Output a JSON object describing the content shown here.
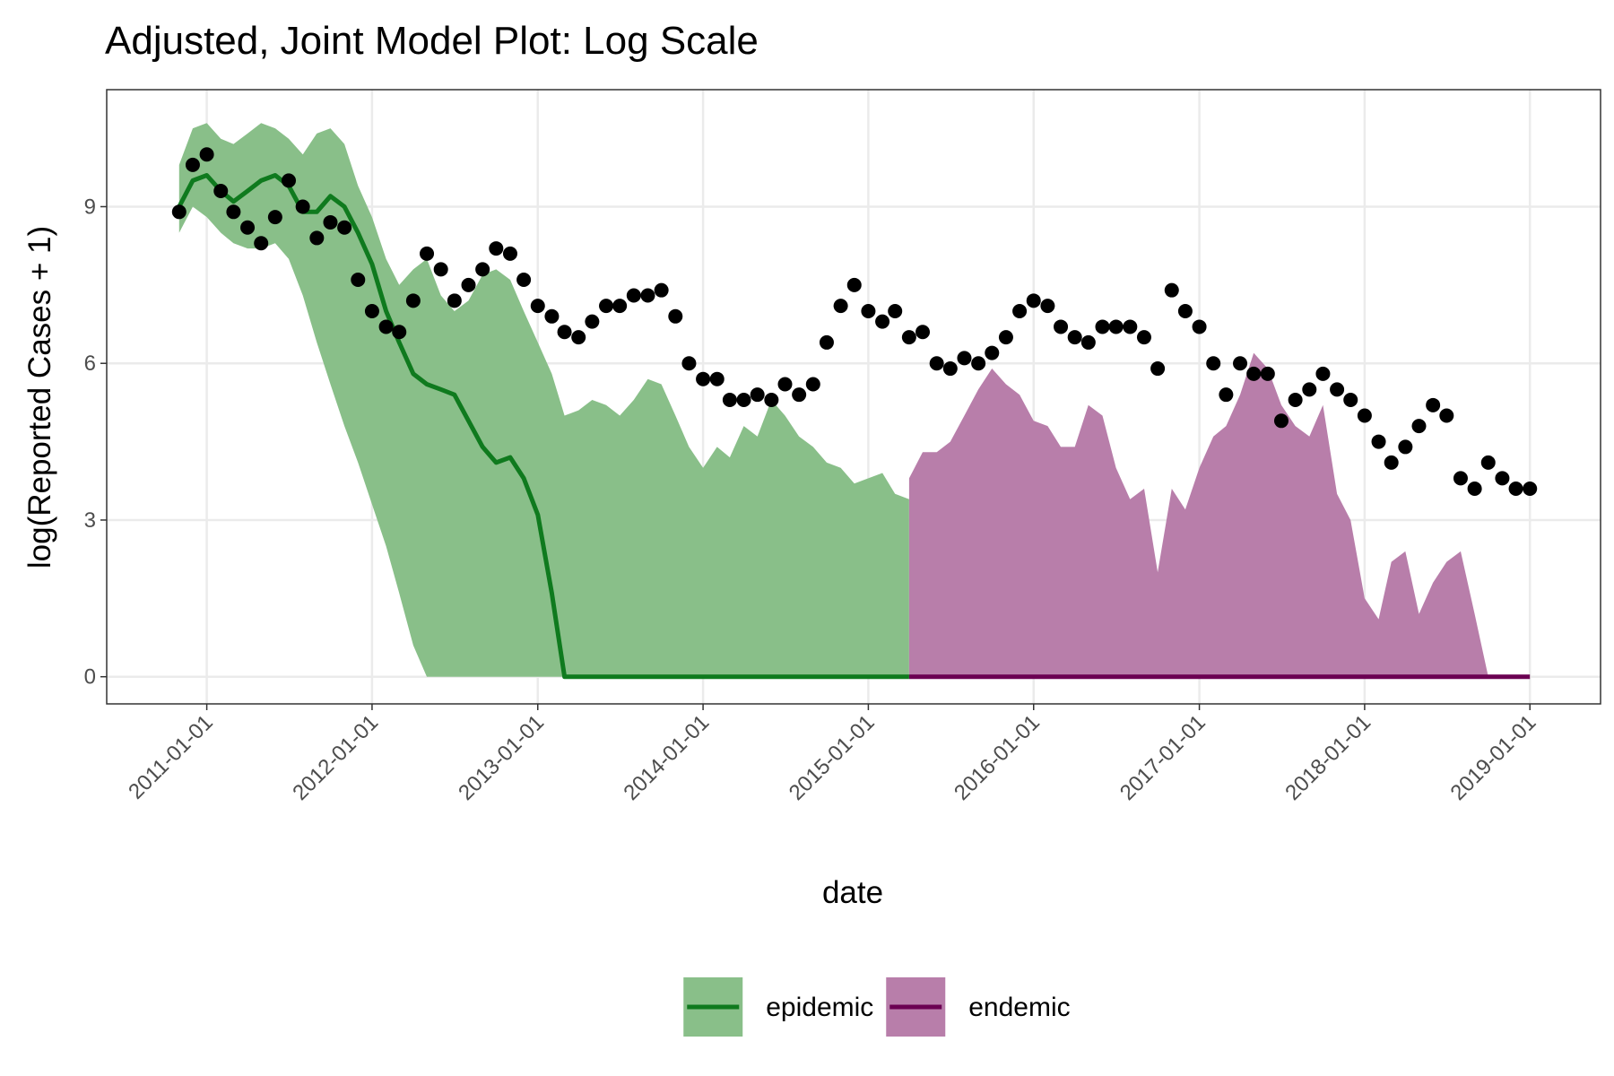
{
  "chart_data": {
    "type": "line",
    "title": "Adjusted, Joint Model Plot: Log Scale",
    "x_label": "date",
    "y_label": "log(Reported Cases + 1)",
    "xlim": [
      "2010-05-25",
      "2019-06-06"
    ],
    "xticks": [
      "2011-01-01",
      "2012-01-01",
      "2013-01-01",
      "2014-01-01",
      "2015-01-01",
      "2016-01-01",
      "2017-01-01",
      "2018-01-01",
      "2019-01-01"
    ],
    "ylim": [
      -0.52,
      11.24
    ],
    "yticks": [
      0,
      3,
      6,
      9
    ],
    "grid": true,
    "legend_position": "bottom",
    "x": [
      "2010-11-01",
      "2010-12-01",
      "2011-01-01",
      "2011-02-01",
      "2011-03-01",
      "2011-04-01",
      "2011-05-01",
      "2011-06-01",
      "2011-07-01",
      "2011-08-01",
      "2011-09-01",
      "2011-10-01",
      "2011-11-01",
      "2011-12-01",
      "2012-01-01",
      "2012-02-01",
      "2012-03-01",
      "2012-04-01",
      "2012-05-01",
      "2012-06-01",
      "2012-07-01",
      "2012-08-01",
      "2012-09-01",
      "2012-10-01",
      "2012-11-01",
      "2012-12-01",
      "2013-01-01",
      "2013-02-01",
      "2013-03-01",
      "2013-04-01",
      "2013-05-01",
      "2013-06-01",
      "2013-07-01",
      "2013-08-01",
      "2013-09-01",
      "2013-10-01",
      "2013-11-01",
      "2013-12-01",
      "2014-01-01",
      "2014-02-01",
      "2014-03-01",
      "2014-04-01",
      "2014-05-01",
      "2014-06-01",
      "2014-07-01",
      "2014-08-01",
      "2014-09-01",
      "2014-10-01",
      "2014-11-01",
      "2014-12-01",
      "2015-01-01",
      "2015-02-01",
      "2015-03-01",
      "2015-04-01",
      "2015-05-01",
      "2015-06-01",
      "2015-07-01",
      "2015-08-01",
      "2015-09-01",
      "2015-10-01",
      "2015-11-01",
      "2015-12-01",
      "2016-01-01",
      "2016-02-01",
      "2016-03-01",
      "2016-04-01",
      "2016-05-01",
      "2016-06-01",
      "2016-07-01",
      "2016-08-01",
      "2016-09-01",
      "2016-10-01",
      "2016-11-01",
      "2016-12-01",
      "2017-01-01",
      "2017-02-01",
      "2017-03-01",
      "2017-04-01",
      "2017-05-01",
      "2017-06-01",
      "2017-07-01",
      "2017-08-01",
      "2017-09-01",
      "2017-10-01",
      "2017-11-01",
      "2017-12-01",
      "2018-01-01",
      "2018-02-01",
      "2018-03-01",
      "2018-04-01",
      "2018-05-01",
      "2018-06-01",
      "2018-07-01",
      "2018-08-01",
      "2018-09-01",
      "2018-10-01",
      "2018-11-01",
      "2018-12-01",
      "2019-01-01"
    ],
    "points": {
      "color": "#000000",
      "values": [
        8.9,
        9.8,
        10.0,
        9.3,
        8.9,
        8.6,
        8.3,
        8.8,
        9.5,
        9.0,
        8.4,
        8.7,
        8.6,
        7.6,
        7.0,
        6.7,
        6.6,
        7.2,
        8.1,
        7.8,
        7.2,
        7.5,
        7.8,
        8.2,
        8.1,
        7.6,
        7.1,
        6.9,
        6.6,
        6.5,
        6.8,
        7.1,
        7.1,
        7.3,
        7.3,
        7.4,
        6.9,
        6.0,
        5.7,
        5.7,
        5.3,
        5.3,
        5.4,
        5.3,
        5.6,
        5.4,
        5.6,
        6.4,
        7.1,
        7.5,
        7.0,
        6.8,
        7.0,
        6.5,
        6.6,
        6.0,
        5.9,
        6.1,
        6.0,
        6.2,
        6.5,
        7.0,
        7.2,
        7.1,
        6.7,
        6.5,
        6.4,
        6.7,
        6.7,
        6.7,
        6.5,
        5.9,
        7.4,
        7.0,
        6.7,
        6.0,
        5.4,
        6.0,
        5.8,
        5.8,
        4.9,
        5.3,
        5.5,
        5.8,
        5.5,
        5.3,
        5.0,
        4.5,
        4.1,
        4.4,
        4.8,
        5.2,
        5.0,
        3.8,
        3.6,
        4.1,
        3.8,
        3.6,
        3.6
      ]
    },
    "series": [
      {
        "name": "epidemic",
        "color": "#0f7a1e",
        "fill": "#89bf89",
        "values": [
          9.0,
          9.5,
          9.6,
          9.3,
          9.1,
          9.3,
          9.5,
          9.6,
          9.4,
          8.9,
          8.9,
          9.2,
          9.0,
          8.5,
          7.9,
          7.0,
          6.4,
          5.8,
          5.6,
          5.5,
          5.4,
          4.9,
          4.4,
          4.1,
          4.2,
          3.8,
          3.1,
          1.6,
          0,
          0,
          0,
          0,
          0,
          0,
          0,
          0,
          0,
          0,
          0,
          0,
          0,
          0,
          0,
          0,
          0,
          0,
          0,
          0,
          0,
          0,
          0,
          0,
          0,
          0,
          null,
          null,
          null,
          null,
          null,
          null,
          null,
          null,
          null,
          null,
          null,
          null,
          null,
          null,
          null,
          null,
          null,
          null,
          null,
          null,
          null,
          null,
          null,
          null,
          null,
          null,
          null,
          null,
          null,
          null,
          null,
          null,
          null,
          null,
          null,
          null,
          null,
          null,
          null,
          null,
          null,
          null,
          null,
          null,
          null
        ],
        "lower": [
          8.5,
          9.0,
          8.8,
          8.5,
          8.3,
          8.2,
          8.2,
          8.3,
          8.0,
          7.3,
          6.4,
          5.6,
          4.8,
          4.1,
          3.3,
          2.5,
          1.6,
          0.6,
          0,
          0,
          0,
          0,
          0,
          0,
          0,
          0,
          0,
          0,
          0,
          0,
          0,
          0,
          0,
          0,
          0,
          0,
          0,
          0,
          0,
          0,
          0,
          0,
          0,
          0,
          0,
          0,
          0,
          0,
          0,
          0,
          0,
          0,
          0,
          0,
          null,
          null,
          null,
          null,
          null,
          null,
          null,
          null,
          null,
          null,
          null,
          null,
          null,
          null,
          null,
          null,
          null,
          null,
          null,
          null,
          null,
          null,
          null,
          null,
          null,
          null,
          null,
          null,
          null,
          null,
          null,
          null,
          null,
          null,
          null,
          null,
          null,
          null,
          null,
          null,
          null,
          null,
          null,
          null,
          null
        ],
        "upper": [
          9.8,
          10.5,
          10.6,
          10.3,
          10.2,
          10.4,
          10.6,
          10.5,
          10.3,
          10.0,
          10.4,
          10.5,
          10.2,
          9.4,
          8.8,
          8.0,
          7.5,
          7.8,
          8.0,
          7.3,
          7.0,
          7.2,
          7.7,
          7.8,
          7.6,
          7.0,
          6.4,
          5.8,
          5.0,
          5.1,
          5.3,
          5.2,
          5.0,
          5.3,
          5.7,
          5.6,
          5.0,
          4.4,
          4.0,
          4.4,
          4.2,
          4.8,
          4.6,
          5.3,
          5.0,
          4.6,
          4.4,
          4.1,
          4.0,
          3.7,
          3.8,
          3.9,
          3.5,
          3.4,
          null,
          null,
          null,
          null,
          null,
          null,
          null,
          null,
          null,
          null,
          null,
          null,
          null,
          null,
          null,
          null,
          null,
          null,
          null,
          null,
          null,
          null,
          null,
          null,
          null,
          null,
          null,
          null,
          null,
          null,
          null,
          null,
          null,
          null,
          null,
          null,
          null,
          null,
          null,
          null,
          null,
          null,
          null,
          null,
          null
        ]
      },
      {
        "name": "endemic",
        "color": "#6b0052",
        "fill": "#b87eaa",
        "values": [
          null,
          null,
          null,
          null,
          null,
          null,
          null,
          null,
          null,
          null,
          null,
          null,
          null,
          null,
          null,
          null,
          null,
          null,
          null,
          null,
          null,
          null,
          null,
          null,
          null,
          null,
          null,
          null,
          null,
          null,
          null,
          null,
          null,
          null,
          null,
          null,
          null,
          null,
          null,
          null,
          null,
          null,
          null,
          null,
          null,
          null,
          null,
          null,
          null,
          null,
          null,
          null,
          null,
          0,
          0,
          0,
          0,
          0,
          0,
          0,
          0,
          0,
          0,
          0,
          0,
          0,
          0,
          0,
          0,
          0,
          0,
          0,
          0,
          0,
          0,
          0,
          0,
          0,
          0,
          0,
          0,
          0,
          0,
          0,
          0,
          0,
          0,
          0,
          0,
          0,
          0,
          0,
          0,
          0,
          0,
          0,
          0,
          0,
          0
        ],
        "lower": [
          null,
          null,
          null,
          null,
          null,
          null,
          null,
          null,
          null,
          null,
          null,
          null,
          null,
          null,
          null,
          null,
          null,
          null,
          null,
          null,
          null,
          null,
          null,
          null,
          null,
          null,
          null,
          null,
          null,
          null,
          null,
          null,
          null,
          null,
          null,
          null,
          null,
          null,
          null,
          null,
          null,
          null,
          null,
          null,
          null,
          null,
          null,
          null,
          null,
          null,
          null,
          null,
          null,
          0,
          0,
          0,
          0,
          0,
          0,
          0,
          0,
          0,
          0,
          0,
          0,
          0,
          0,
          0,
          0,
          0,
          0,
          0,
          0,
          0,
          0,
          0,
          0,
          0,
          0,
          0,
          0,
          0,
          0,
          0,
          0,
          0,
          0,
          0,
          0,
          0,
          0,
          0,
          0,
          0,
          0,
          0,
          0,
          0,
          0
        ],
        "upper": [
          null,
          null,
          null,
          null,
          null,
          null,
          null,
          null,
          null,
          null,
          null,
          null,
          null,
          null,
          null,
          null,
          null,
          null,
          null,
          null,
          null,
          null,
          null,
          null,
          null,
          null,
          null,
          null,
          null,
          null,
          null,
          null,
          null,
          null,
          null,
          null,
          null,
          null,
          null,
          null,
          null,
          null,
          null,
          null,
          null,
          null,
          null,
          null,
          null,
          null,
          null,
          null,
          null,
          3.8,
          4.3,
          4.3,
          4.5,
          5.0,
          5.5,
          5.9,
          5.6,
          5.4,
          4.9,
          4.8,
          4.4,
          4.4,
          5.2,
          5.0,
          4.0,
          3.4,
          3.6,
          2.0,
          3.6,
          3.2,
          4.0,
          4.6,
          4.8,
          5.4,
          6.2,
          5.9,
          5.2,
          4.8,
          4.6,
          5.2,
          3.5,
          3.0,
          1.5,
          1.1,
          2.2,
          2.4,
          1.2,
          1.8,
          2.2,
          2.4,
          1.2,
          0,
          0,
          0,
          0
        ]
      }
    ]
  }
}
